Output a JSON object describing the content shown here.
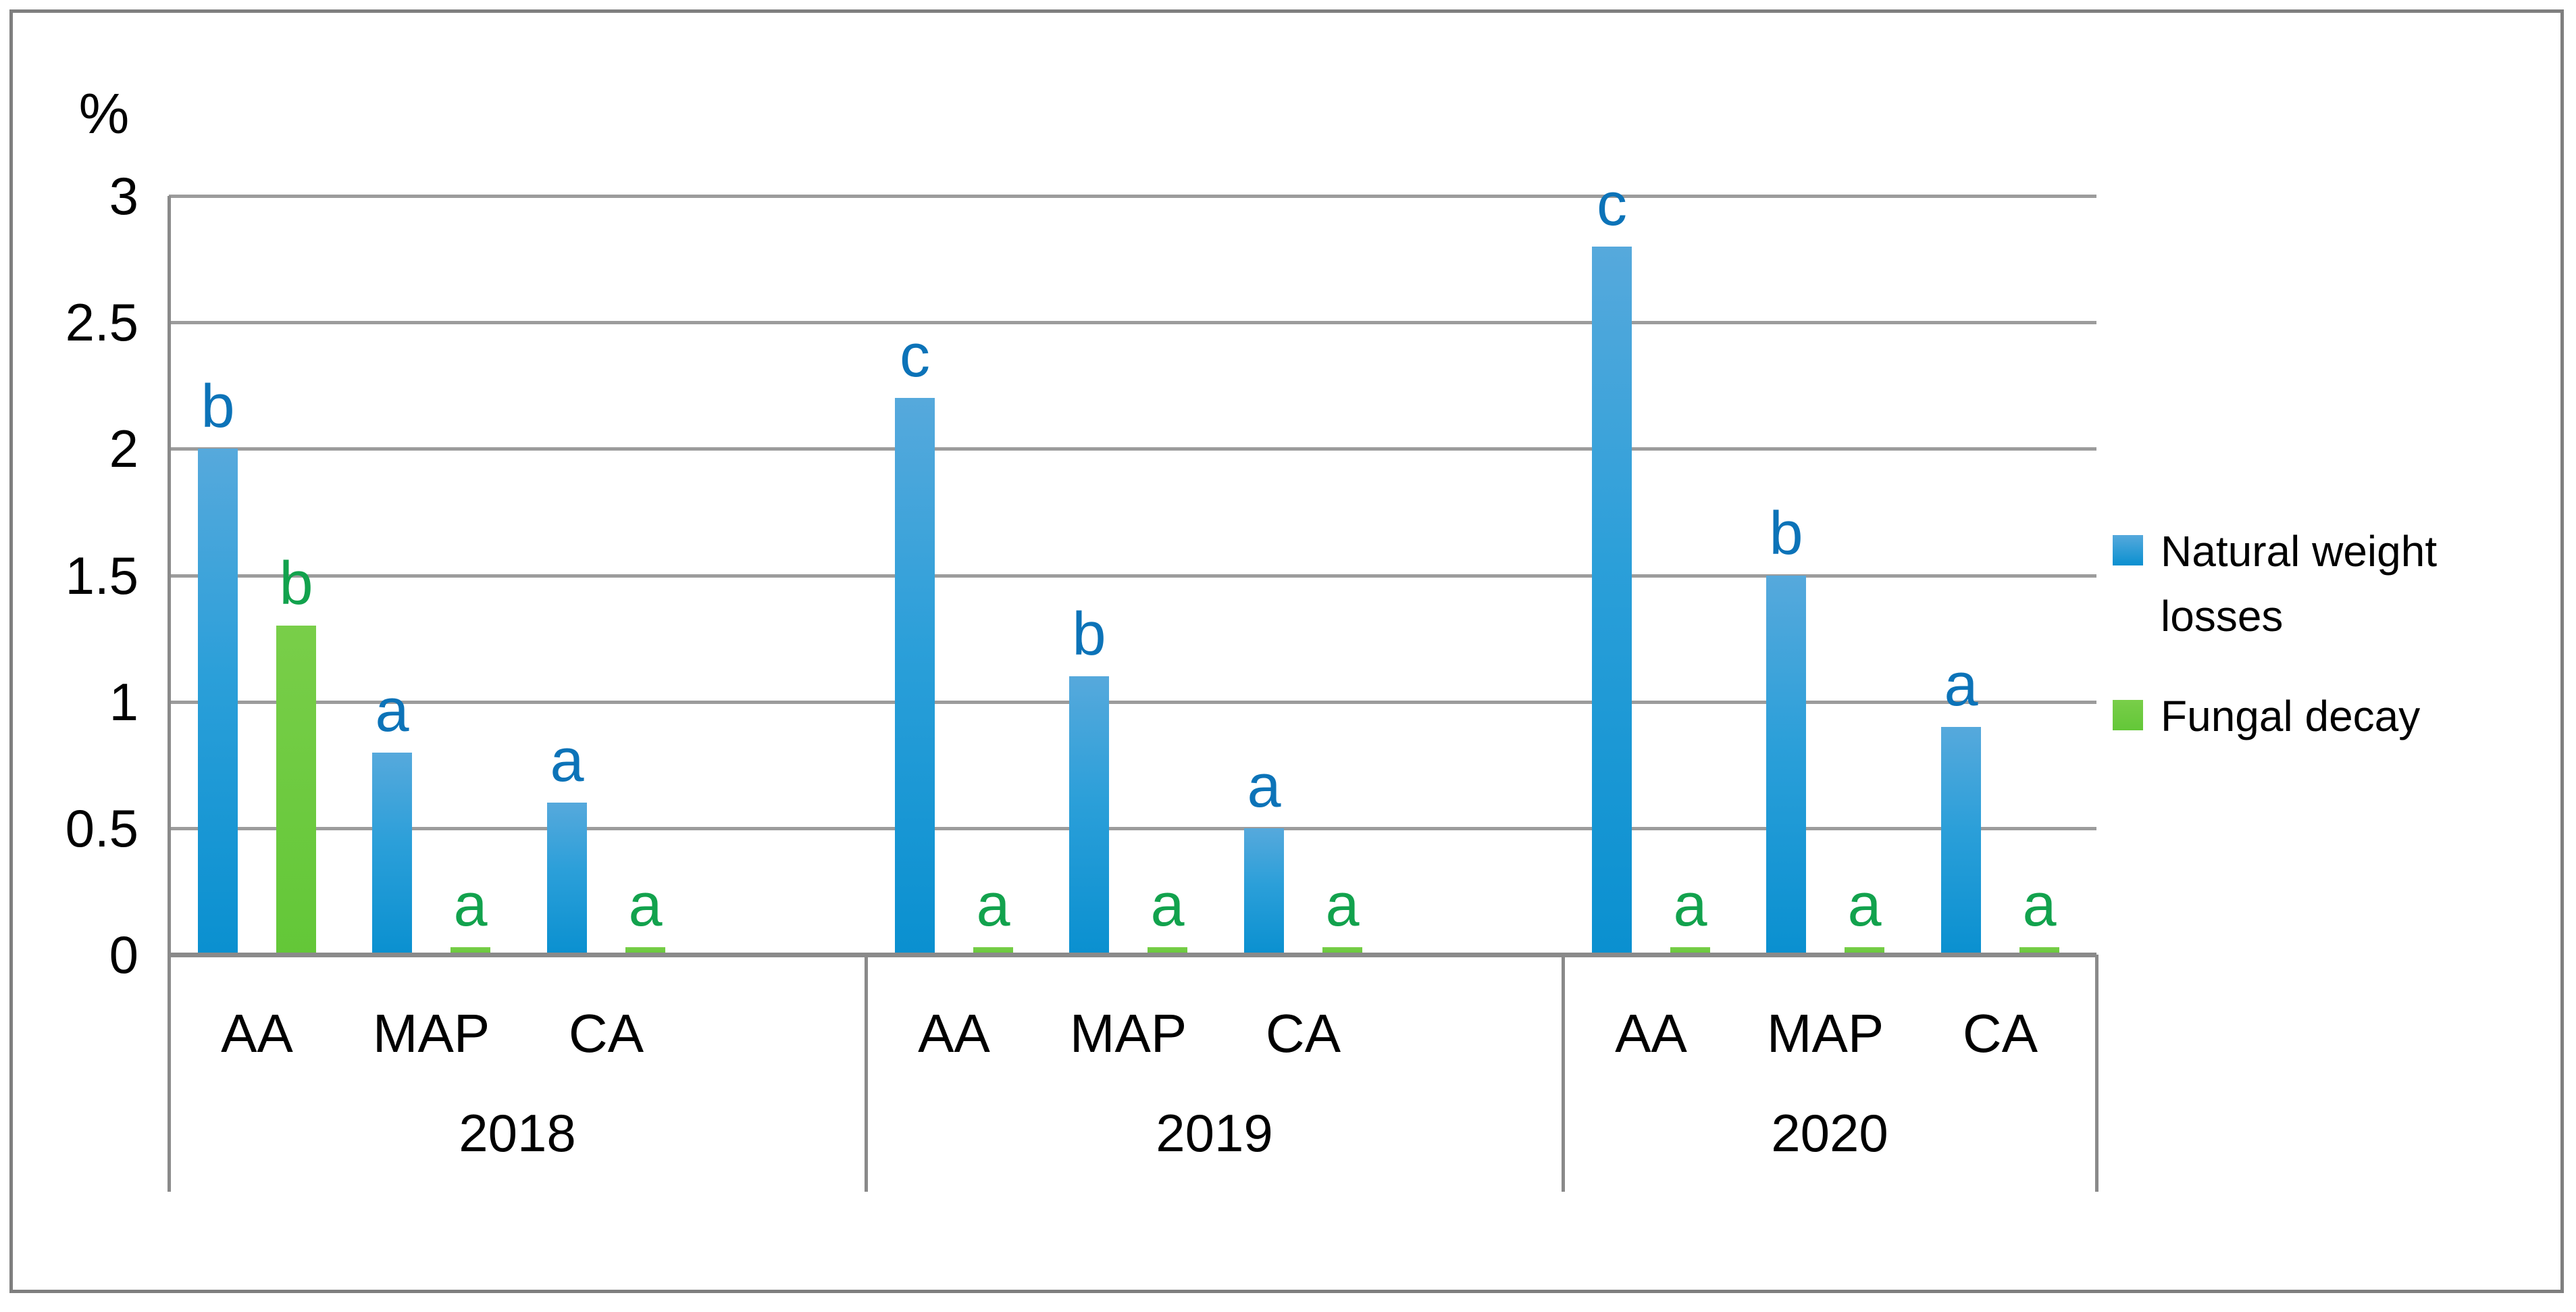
{
  "chart_data": {
    "type": "bar",
    "title": "",
    "unit_label": "%",
    "xlabel": "",
    "ylabel": "%",
    "ylim": [
      0,
      3
    ],
    "grid": true,
    "legend_position": "right",
    "yticks": [
      {
        "label": "3",
        "value": 3
      },
      {
        "label": "2.5",
        "value": 2.5
      },
      {
        "label": "2",
        "value": 2
      },
      {
        "label": "1.5",
        "value": 1.5
      },
      {
        "label": "1",
        "value": 1
      },
      {
        "label": "0.5",
        "value": 0.5
      },
      {
        "label": "0",
        "value": 0
      }
    ],
    "series": [
      {
        "name": "Natural weight losses",
        "color": "#0a90d0",
        "color_light": "#56a9dc",
        "letter_color": "#0c73b8"
      },
      {
        "name": "Fungal decay",
        "color": "#63c738",
        "color_light": "#79ce49",
        "letter_color": "#12a24d"
      }
    ],
    "groups": [
      {
        "year": "2018",
        "items": [
          {
            "category": "AA",
            "values": [
              {
                "series": "Natural weight losses",
                "value": 2.0,
                "letter": "b"
              },
              {
                "series": "Fungal decay",
                "value": 1.3,
                "letter": "b"
              }
            ]
          },
          {
            "category": "MAP",
            "values": [
              {
                "series": "Natural weight losses",
                "value": 0.8,
                "letter": "a"
              },
              {
                "series": "Fungal decay",
                "value": 0.03,
                "letter": "a"
              }
            ]
          },
          {
            "category": "CA",
            "values": [
              {
                "series": "Natural weight losses",
                "value": 0.6,
                "letter": "a"
              },
              {
                "series": "Fungal decay",
                "value": 0.03,
                "letter": "a"
              }
            ]
          }
        ]
      },
      {
        "year": "2019",
        "items": [
          {
            "category": "AA",
            "values": [
              {
                "series": "Natural weight losses",
                "value": 2.2,
                "letter": "c"
              },
              {
                "series": "Fungal decay",
                "value": 0.03,
                "letter": "a"
              }
            ]
          },
          {
            "category": "MAP",
            "values": [
              {
                "series": "Natural weight losses",
                "value": 1.1,
                "letter": "b"
              },
              {
                "series": "Fungal decay",
                "value": 0.03,
                "letter": "a"
              }
            ]
          },
          {
            "category": "CA",
            "values": [
              {
                "series": "Natural weight losses",
                "value": 0.5,
                "letter": "a"
              },
              {
                "series": "Fungal decay",
                "value": 0.03,
                "letter": "a"
              }
            ]
          }
        ]
      },
      {
        "year": "2020",
        "items": [
          {
            "category": "AA",
            "values": [
              {
                "series": "Natural weight losses",
                "value": 2.8,
                "letter": "c"
              },
              {
                "series": "Fungal decay",
                "value": 0.03,
                "letter": "a"
              }
            ]
          },
          {
            "category": "MAP",
            "values": [
              {
                "series": "Natural weight losses",
                "value": 1.5,
                "letter": "b"
              },
              {
                "series": "Fungal decay",
                "value": 0.03,
                "letter": "a"
              }
            ]
          },
          {
            "category": "CA",
            "values": [
              {
                "series": "Natural weight losses",
                "value": 0.9,
                "letter": "a"
              },
              {
                "series": "Fungal decay",
                "value": 0.03,
                "letter": "a"
              }
            ]
          }
        ]
      }
    ]
  }
}
